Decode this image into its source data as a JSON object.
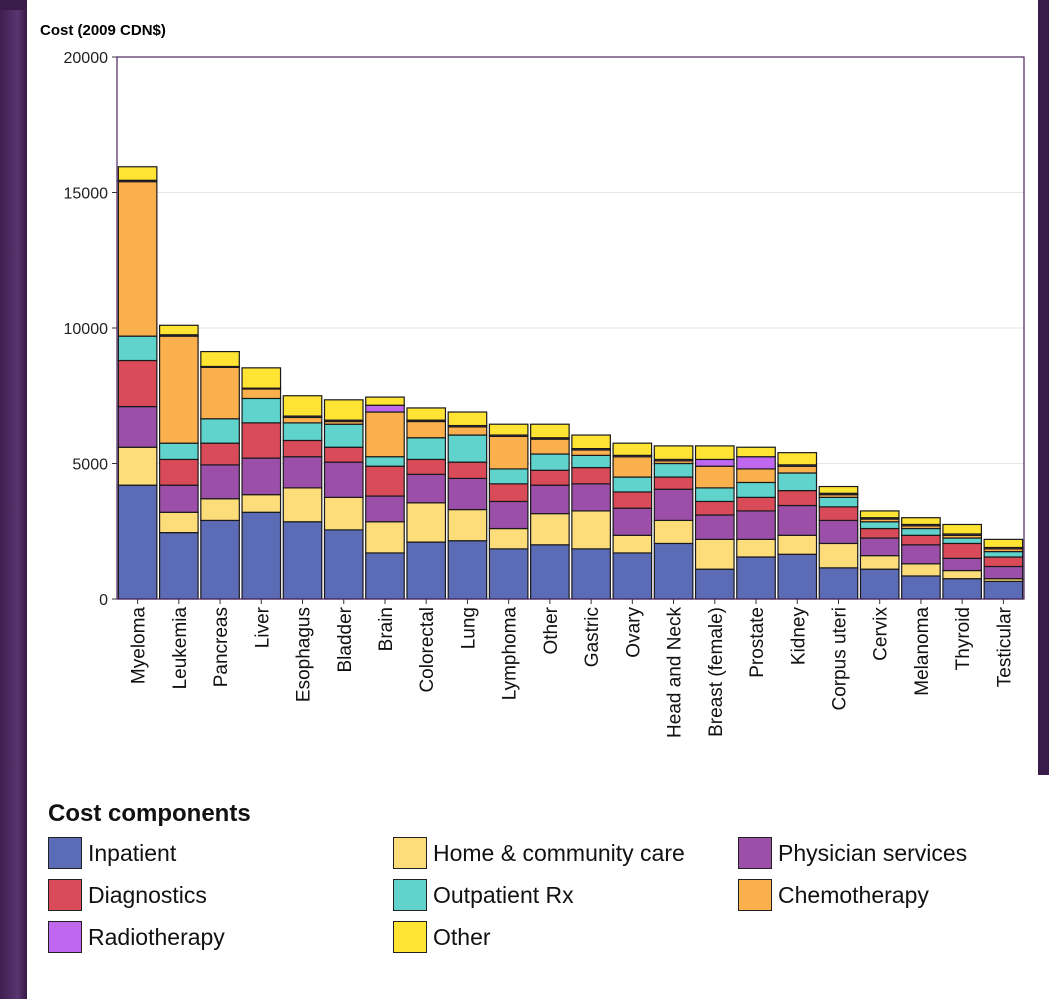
{
  "chart_data": {
    "type": "bar",
    "stacked": true,
    "ylabel": "Cost (2009 CDN$)",
    "ylim": [
      0,
      20000
    ],
    "yticks": [
      0,
      5000,
      10000,
      15000,
      20000
    ],
    "grid": true,
    "legend_position": "bottom",
    "legend_title": "Cost components",
    "categories": [
      "Myeloma",
      "Leukemia",
      "Pancreas",
      "Liver",
      "Esophagus",
      "Bladder",
      "Brain",
      "Colorectal",
      "Lung",
      "Lymphoma",
      "Other",
      "Gastric",
      "Ovary",
      "Head and Neck",
      "Breast (female)",
      "Prostate",
      "Kidney",
      "Corpus uteri",
      "Cervix",
      "Melanoma",
      "Thyroid",
      "Testicular"
    ],
    "series": [
      {
        "name": "Inpatient",
        "color": "#5b6bb5",
        "values": [
          4200,
          2450,
          2900,
          3200,
          2850,
          2550,
          1700,
          2100,
          2150,
          1850,
          2000,
          1850,
          1700,
          2050,
          1100,
          1550,
          1650,
          1150,
          1100,
          850,
          750,
          650
        ]
      },
      {
        "name": "Home & community care",
        "color": "#fddc7a",
        "values": [
          1400,
          750,
          800,
          650,
          1250,
          1200,
          1150,
          1450,
          1150,
          750,
          1150,
          1400,
          650,
          850,
          1100,
          650,
          700,
          900,
          500,
          450,
          300,
          100
        ]
      },
      {
        "name": "Physician services",
        "color": "#9b4fa8",
        "values": [
          1500,
          1000,
          1250,
          1350,
          1150,
          1300,
          950,
          1050,
          1150,
          1000,
          1050,
          1000,
          1000,
          1150,
          900,
          1050,
          1100,
          850,
          650,
          700,
          450,
          450
        ]
      },
      {
        "name": "Diagnostics",
        "color": "#d94b58",
        "values": [
          1700,
          950,
          800,
          1300,
          600,
          550,
          1100,
          550,
          600,
          650,
          550,
          600,
          600,
          450,
          500,
          500,
          550,
          500,
          350,
          350,
          550,
          350
        ]
      },
      {
        "name": "Outpatient Rx",
        "color": "#5fd3cc",
        "values": [
          900,
          600,
          900,
          900,
          650,
          850,
          350,
          800,
          1000,
          550,
          600,
          450,
          550,
          500,
          500,
          550,
          650,
          350,
          250,
          250,
          200,
          200
        ]
      },
      {
        "name": "Chemotherapy",
        "color": "#fbb04e",
        "values": [
          5700,
          3950,
          1900,
          350,
          200,
          100,
          1650,
          600,
          300,
          1200,
          550,
          200,
          750,
          100,
          800,
          500,
          250,
          100,
          100,
          100,
          100,
          100
        ]
      },
      {
        "name": "Radiotherapy",
        "color": "#c067f0",
        "values": [
          50,
          50,
          30,
          30,
          50,
          50,
          250,
          50,
          50,
          50,
          50,
          50,
          50,
          50,
          250,
          450,
          50,
          50,
          50,
          50,
          50,
          50
        ]
      },
      {
        "name": "Other",
        "color": "#ffe433",
        "values": [
          500,
          350,
          550,
          750,
          750,
          750,
          300,
          450,
          500,
          400,
          500,
          500,
          450,
          500,
          500,
          350,
          450,
          250,
          250,
          250,
          350,
          300
        ]
      }
    ]
  },
  "legend_order": [
    {
      "name": "Inpatient",
      "color": "#5b6bb5"
    },
    {
      "name": "Home & community care",
      "color": "#fddc7a"
    },
    {
      "name": "Physician services",
      "color": "#9b4fa8"
    },
    {
      "name": "Diagnostics",
      "color": "#d94b58"
    },
    {
      "name": "Outpatient Rx",
      "color": "#5fd3cc"
    },
    {
      "name": "Chemotherapy",
      "color": "#fbb04e"
    },
    {
      "name": "Radiotherapy",
      "color": "#c067f0"
    },
    {
      "name": "Other",
      "color": "#ffe433"
    }
  ]
}
